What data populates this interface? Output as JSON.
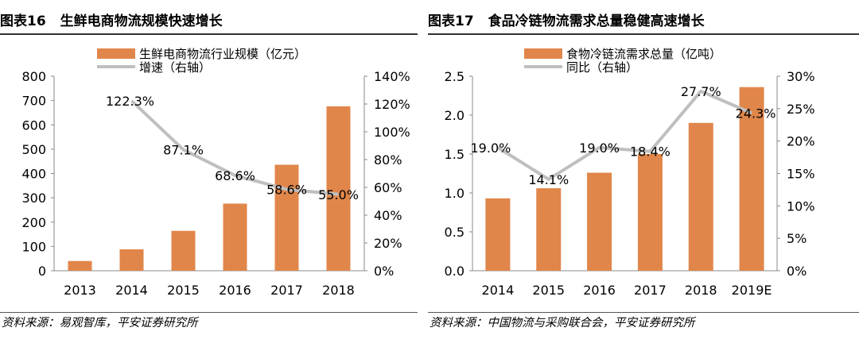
{
  "colors": {
    "bar": "#E0864A",
    "line": "#BFBFBF",
    "text": "#000000"
  },
  "left": {
    "title_number": "图表16",
    "title_text": "生鲜电商物流规模快速增长",
    "source": "资料来源：易观智库，平安证券研究所"
  },
  "right": {
    "title_number": "图表17",
    "title_text": "食品冷链物流需求总量稳健高速增长",
    "source": "资料来源：中国物流与采购联合会，平安证券研究所"
  },
  "chart_data": [
    {
      "type": "bar",
      "categories": [
        "2013",
        "2014",
        "2015",
        "2016",
        "2017",
        "2018"
      ],
      "series": [
        {
          "name": "生鲜电商物流行业规模（亿元）",
          "type": "bar",
          "axis": "left",
          "values": [
            40,
            88,
            164,
            276,
            436,
            676
          ]
        },
        {
          "name": "增速（右轴）",
          "type": "line",
          "axis": "right",
          "values": [
            null,
            122.3,
            87.1,
            68.6,
            58.6,
            55.0
          ],
          "labels": [
            "",
            "122.3%",
            "87.1%",
            "68.6%",
            "58.6%",
            "55.0%"
          ]
        }
      ],
      "ylim_left": [
        0,
        800
      ],
      "yticks_left": [
        "0",
        "100",
        "200",
        "300",
        "400",
        "500",
        "600",
        "700",
        "800"
      ],
      "ylim_right": [
        0,
        140
      ],
      "yticks_right": [
        "0%",
        "20%",
        "40%",
        "60%",
        "80%",
        "100%",
        "120%",
        "140%"
      ],
      "legend": "top-center",
      "grid": false
    },
    {
      "type": "bar",
      "categories": [
        "2014",
        "2015",
        "2016",
        "2017",
        "2018",
        "2019E"
      ],
      "series": [
        {
          "name": "食物冷链流需求总量（亿吨）",
          "type": "bar",
          "axis": "left",
          "values": [
            0.93,
            1.06,
            1.26,
            1.5,
            1.9,
            2.36
          ]
        },
        {
          "name": "同比（右轴）",
          "type": "line",
          "axis": "right",
          "values": [
            19.0,
            14.1,
            19.0,
            18.4,
            27.7,
            24.3
          ],
          "labels": [
            "19.0%",
            "14.1%",
            "19.0%",
            "18.4%",
            "27.7%",
            "24.3%"
          ]
        }
      ],
      "ylim_left": [
        0,
        2.5
      ],
      "yticks_left": [
        "0.0",
        "0.5",
        "1.0",
        "1.5",
        "2.0",
        "2.5"
      ],
      "ylim_right": [
        0,
        30
      ],
      "yticks_right": [
        "0%",
        "5%",
        "10%",
        "15%",
        "20%",
        "25%",
        "30%"
      ],
      "legend": "top-center",
      "grid": false
    }
  ]
}
